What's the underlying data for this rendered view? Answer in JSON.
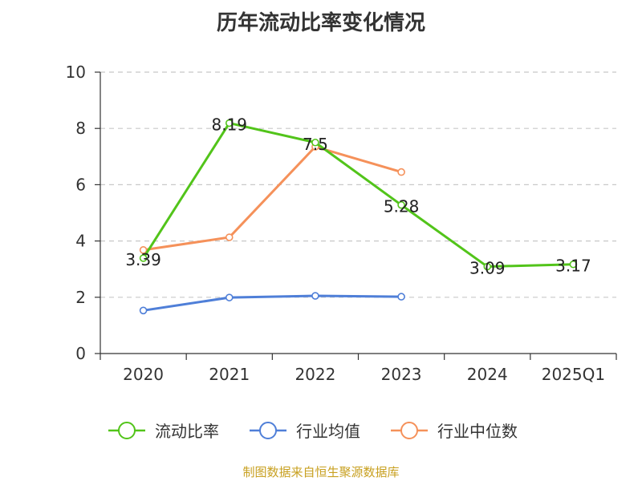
{
  "chart_data": {
    "type": "line",
    "title": "历年流动比率变化情况",
    "categories": [
      "2020",
      "2021",
      "2022",
      "2023",
      "2024",
      "2025Q1"
    ],
    "ylim": [
      0,
      10
    ],
    "yticks": [
      "0",
      "2",
      "4",
      "6",
      "8",
      "10"
    ],
    "grid": true,
    "legend_position": "bottom",
    "series": [
      {
        "name": "流动比率",
        "color": "#52c41a",
        "values": [
          3.39,
          8.19,
          7.5,
          5.28,
          3.09,
          3.17
        ],
        "labels": [
          "3.39",
          "8.19",
          "7.5",
          "5.28",
          "3.09",
          "3.17"
        ]
      },
      {
        "name": "行业均值",
        "color": "#4f7fd8",
        "values": [
          1.53,
          1.99,
          2.05,
          2.02,
          null,
          null
        ]
      },
      {
        "name": "行业中位数",
        "color": "#f5915a",
        "values": [
          3.68,
          4.13,
          7.35,
          6.45,
          null,
          null
        ]
      }
    ]
  },
  "footer": {
    "source": "制图数据来自恒生聚源数据库"
  }
}
